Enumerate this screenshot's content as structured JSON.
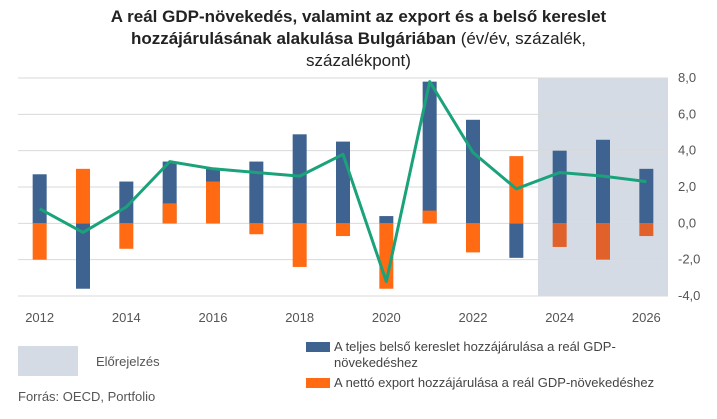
{
  "title": {
    "bold_line1": "A reál GDP-növekedés, valamint az export és a belső kereslet",
    "bold_line2": "hozzájárulásának alakulása Bulgáriában",
    "rest_line2": " (év/év, százalék,",
    "rest_line3": "százalékpont)"
  },
  "legend": {
    "forecast": "Előrejelzés",
    "domestic": "A teljes belső kereslet hozzájárulása a reál GDP-növekedéshez",
    "domestic_line1": "A teljes belső kereslet hozzájárulása a reál GDP-",
    "domestic_line2": "növekedéshez",
    "export": "A nettó export hozzájárulása a reál GDP-növekedéshez"
  },
  "source": "Forrás: OECD, Portfolio",
  "colors": {
    "domestic": "#3f6390",
    "export": "#ff6a12",
    "export_forecast": "#e0622a",
    "gdp_line": "#1aa37a",
    "forecast_band": "#d5dbe5",
    "grid": "#d9d9d9"
  },
  "chart_data": {
    "type": "bar",
    "x": [
      2012,
      2013,
      2014,
      2015,
      2016,
      2017,
      2018,
      2019,
      2020,
      2021,
      2022,
      2023,
      2024,
      2025,
      2026
    ],
    "x_tick_labels": [
      "2012",
      "2014",
      "2016",
      "2018",
      "2020",
      "2022",
      "2024",
      "2026"
    ],
    "y_tick_labels": [
      "8,0",
      "6,0",
      "4,0",
      "2,0",
      "0,0",
      "-2,0",
      "-4,0"
    ],
    "ylim": [
      -4,
      8
    ],
    "forecast_start": 2024,
    "series": [
      {
        "name": "A teljes belső kereslet hozzájárulása a reál GDP-növekedéshez",
        "kind": "bar",
        "values": [
          2.7,
          -3.6,
          2.3,
          3.4,
          3.0,
          3.4,
          4.9,
          4.5,
          0.4,
          7.8,
          5.7,
          -1.9,
          4.0,
          4.6,
          3.0
        ]
      },
      {
        "name": "A nettó export hozzájárulása a reál GDP-növekedéshez",
        "kind": "bar",
        "values": [
          -2.0,
          3.0,
          -1.4,
          1.1,
          2.3,
          -0.6,
          -2.4,
          -0.7,
          -3.6,
          0.7,
          -1.6,
          3.7,
          -1.3,
          -2.0,
          -0.7
        ]
      },
      {
        "kind": "line",
        "values": [
          0.8,
          -0.5,
          0.9,
          3.4,
          3.0,
          2.8,
          2.6,
          3.8,
          -3.2,
          7.8,
          3.9,
          1.9,
          2.8,
          2.6,
          2.3
        ]
      }
    ]
  }
}
